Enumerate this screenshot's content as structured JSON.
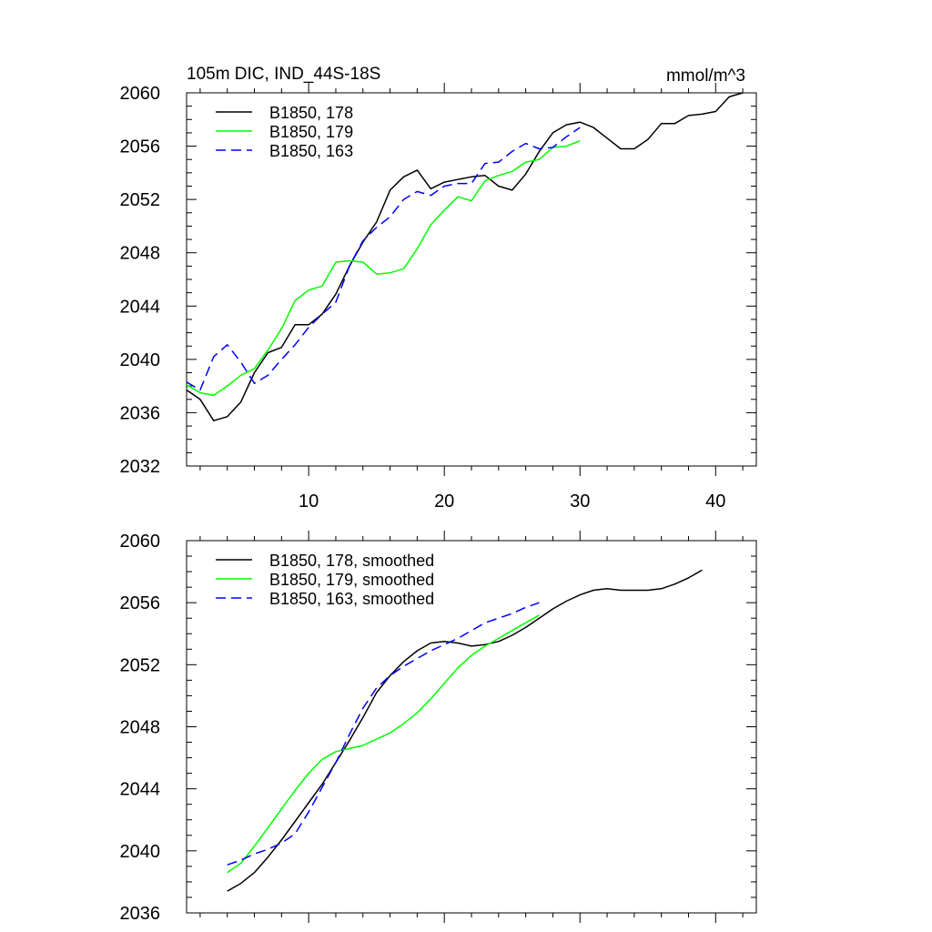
{
  "chart_data": [
    {
      "type": "line",
      "title": "105m DIC, IND_44S-18S",
      "units": "mmol/m^3",
      "xlim": [
        1,
        43
      ],
      "ylim": [
        2032,
        2060
      ],
      "xticks": [
        10,
        20,
        30,
        40
      ],
      "xtick_labels": [
        "10",
        "20",
        "30",
        "40"
      ],
      "yticks": [
        2032,
        2036,
        2040,
        2044,
        2048,
        2052,
        2056,
        2060
      ],
      "ytick_labels": [
        "2032",
        "2036",
        "2040",
        "2044",
        "2048",
        "2052",
        "2056",
        "2060"
      ],
      "legend_position": "top-left",
      "series": [
        {
          "name": "B1850, 178",
          "color": "#000000",
          "dash": "solid",
          "x": [
            1,
            2,
            3,
            4,
            5,
            6,
            7,
            8,
            9,
            10,
            11,
            12,
            13,
            14,
            15,
            16,
            17,
            18,
            19,
            20,
            21,
            22,
            23,
            24,
            25,
            26,
            27,
            28,
            29,
            30,
            31,
            32,
            33,
            34,
            35,
            36,
            37,
            38,
            39,
            40,
            41,
            42
          ],
          "y": [
            2037.7,
            2037.0,
            2035.4,
            2035.7,
            2036.8,
            2039.0,
            2040.5,
            2040.9,
            2042.6,
            2042.6,
            2043.4,
            2044.9,
            2047.0,
            2048.8,
            2050.3,
            2052.7,
            2053.7,
            2054.2,
            2052.8,
            2053.3,
            2053.5,
            2053.7,
            2053.8,
            2053.0,
            2052.7,
            2053.9,
            2055.6,
            2057.0,
            2057.6,
            2057.8,
            2057.4,
            2056.6,
            2055.8,
            2055.8,
            2056.5,
            2057.7,
            2057.7,
            2058.3,
            2058.4,
            2058.6,
            2059.7,
            2060.0
          ]
        },
        {
          "name": "B1850, 179",
          "color": "#00ff00",
          "dash": "solid",
          "x": [
            1,
            2,
            3,
            4,
            5,
            6,
            7,
            8,
            9,
            10,
            11,
            12,
            13,
            14,
            15,
            16,
            17,
            18,
            19,
            20,
            21,
            22,
            23,
            24,
            25,
            26,
            27,
            28,
            29,
            30
          ],
          "y": [
            2038.1,
            2037.5,
            2037.3,
            2038.0,
            2038.8,
            2039.3,
            2040.7,
            2042.3,
            2044.4,
            2045.2,
            2045.5,
            2047.3,
            2047.4,
            2047.3,
            2046.4,
            2046.5,
            2046.8,
            2048.3,
            2050.1,
            2051.2,
            2052.2,
            2051.9,
            2053.4,
            2053.8,
            2054.1,
            2054.8,
            2055.0,
            2055.9,
            2056.0,
            2056.4
          ]
        },
        {
          "name": "B1850, 163",
          "color": "#0000ff",
          "dash": "dashed",
          "x": [
            1,
            2,
            3,
            4,
            5,
            6,
            7,
            8,
            9,
            10,
            11,
            12,
            13,
            14,
            15,
            16,
            17,
            18,
            19,
            20,
            21,
            22,
            23,
            24,
            25,
            26,
            27,
            28,
            29,
            30
          ],
          "y": [
            2038.3,
            2037.7,
            2040.2,
            2041.1,
            2039.8,
            2038.2,
            2038.8,
            2040.0,
            2041.1,
            2042.4,
            2043.4,
            2044.3,
            2047.0,
            2048.9,
            2049.9,
            2050.7,
            2052.0,
            2052.6,
            2052.3,
            2053.0,
            2053.2,
            2053.2,
            2054.7,
            2054.8,
            2055.6,
            2056.2,
            2055.8,
            2055.9,
            2056.7,
            2057.4
          ]
        }
      ]
    },
    {
      "type": "line",
      "xlim": [
        1,
        43
      ],
      "ylim": [
        2036,
        2060
      ],
      "xticks": [
        10,
        20,
        30,
        40
      ],
      "xtick_labels": [],
      "yticks": [
        2036,
        2040,
        2044,
        2048,
        2052,
        2056,
        2060
      ],
      "ytick_labels": [
        "2036",
        "2040",
        "2044",
        "2048",
        "2052",
        "2056",
        "2060"
      ],
      "legend_position": "top-left",
      "series": [
        {
          "name": "B1850, 178, smoothed",
          "color": "#000000",
          "dash": "solid",
          "x": [
            4,
            5,
            6,
            7,
            8,
            9,
            10,
            11,
            12,
            13,
            14,
            15,
            16,
            17,
            18,
            19,
            20,
            21,
            22,
            23,
            24,
            25,
            26,
            27,
            28,
            29,
            30,
            31,
            32,
            33,
            34,
            35,
            36,
            37,
            38,
            39
          ],
          "y": [
            2037.4,
            2037.9,
            2038.6,
            2039.6,
            2040.7,
            2041.9,
            2043.1,
            2044.3,
            2045.7,
            2047.1,
            2048.6,
            2050.2,
            2051.3,
            2052.2,
            2052.9,
            2053.4,
            2053.5,
            2053.4,
            2053.2,
            2053.3,
            2053.5,
            2053.9,
            2054.4,
            2055.0,
            2055.6,
            2056.1,
            2056.5,
            2056.8,
            2056.9,
            2056.8,
            2056.8,
            2056.8,
            2056.9,
            2057.2,
            2057.6,
            2058.1
          ]
        },
        {
          "name": "B1850, 179, smoothed",
          "color": "#00ff00",
          "dash": "solid",
          "x": [
            4,
            5,
            6,
            7,
            8,
            9,
            10,
            11,
            12,
            13,
            14,
            15,
            16,
            17,
            18,
            19,
            20,
            21,
            22,
            23,
            24,
            25,
            26,
            27
          ],
          "y": [
            2038.6,
            2039.2,
            2040.3,
            2041.5,
            2042.7,
            2043.9,
            2045.0,
            2045.9,
            2046.4,
            2046.6,
            2046.8,
            2047.2,
            2047.6,
            2048.2,
            2048.9,
            2049.8,
            2050.8,
            2051.8,
            2052.6,
            2053.2,
            2053.7,
            2054.2,
            2054.7,
            2055.2
          ]
        },
        {
          "name": "B1850, 163, smoothed",
          "color": "#0000ff",
          "dash": "dashed",
          "x": [
            4,
            5,
            6,
            7,
            8,
            9,
            10,
            11,
            12,
            13,
            14,
            15,
            16,
            17,
            18,
            19,
            20,
            21,
            22,
            23,
            24,
            25,
            26,
            27
          ],
          "y": [
            2039.1,
            2039.4,
            2039.8,
            2040.1,
            2040.5,
            2041.1,
            2042.5,
            2044.1,
            2045.7,
            2047.5,
            2049.2,
            2050.5,
            2051.3,
            2051.9,
            2052.4,
            2052.9,
            2053.3,
            2053.7,
            2054.2,
            2054.7,
            2055.0,
            2055.3,
            2055.7,
            2056.0
          ]
        }
      ]
    }
  ]
}
